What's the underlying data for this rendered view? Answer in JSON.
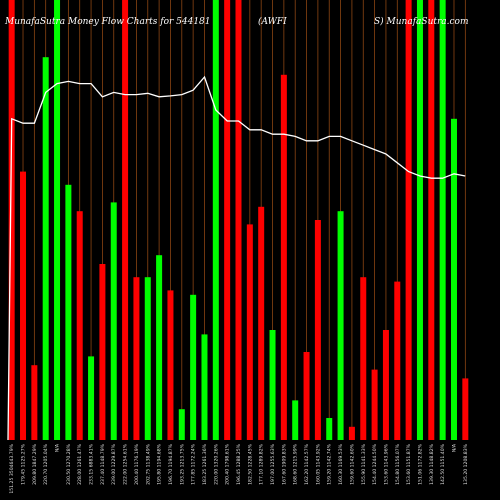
{
  "chart_data": {
    "type": "bar",
    "title_left": "MunafaSutra  Money Flow  Charts for 544181",
    "title_mid": "(AWFI",
    "title_right": "S) MunafaSutra.com",
    "colors": {
      "up": "#00ff00",
      "down": "#ff0000",
      "line": "#ffffff",
      "grid": "#8b4513",
      "background": "#000000"
    },
    "ylim": [
      0,
      100
    ],
    "bars": [
      {
        "label": "151.25 3504643.79%",
        "color": "down",
        "value": 100
      },
      {
        "label": "179.45 1125.27%",
        "color": "down",
        "value": 61
      },
      {
        "label": "209.80 1847.29%",
        "color": "down",
        "value": 17
      },
      {
        "label": "220.70 1205.04%",
        "color": "up",
        "value": 87
      },
      {
        "label": "N/A",
        "color": "up",
        "value": 100
      },
      {
        "label": "230.50 1270.28%",
        "color": "up",
        "value": 58
      },
      {
        "label": "228.00 1261.47%",
        "color": "down",
        "value": 52
      },
      {
        "label": "233.15 6883.41%",
        "color": "up",
        "value": 19
      },
      {
        "label": "237.40 1148.79%",
        "color": "down",
        "value": 40
      },
      {
        "label": "239.00 1229.87%",
        "color": "up",
        "value": 54
      },
      {
        "label": "222.00 1254.61%",
        "color": "down",
        "value": 100
      },
      {
        "label": "200.40 1176.19%",
        "color": "down",
        "value": 37
      },
      {
        "label": "202.75 1138.49%",
        "color": "up",
        "value": 37
      },
      {
        "label": "195.80 1194.68%",
        "color": "up",
        "value": 42
      },
      {
        "label": "196.70 1194.87%",
        "color": "down",
        "value": 34
      },
      {
        "label": "193.25 1213.75%",
        "color": "up",
        "value": 7
      },
      {
        "label": "177.85 1172.24%",
        "color": "up",
        "value": 33
      },
      {
        "label": "183.25 1261.36%",
        "color": "up",
        "value": 24
      },
      {
        "label": "220.00 1320.26%",
        "color": "up",
        "value": 100
      },
      {
        "label": "200.40 1798.61%",
        "color": "down",
        "value": 100
      },
      {
        "label": "196.45 1288.25%",
        "color": "down",
        "value": 100
      },
      {
        "label": "182.50 1228.45%",
        "color": "down",
        "value": 49
      },
      {
        "label": "177.10 1289.82%",
        "color": "down",
        "value": 53
      },
      {
        "label": "197.00 1255.63%",
        "color": "up",
        "value": 25
      },
      {
        "label": "167.60 1909.83%",
        "color": "down",
        "value": 83
      },
      {
        "label": "168.60 1215.99%",
        "color": "up",
        "value": 9
      },
      {
        "label": "162.20 1142.57%",
        "color": "down",
        "value": 20
      },
      {
        "label": "160.05 1143.92%",
        "color": "down",
        "value": 50
      },
      {
        "label": "159.20 1142.74%",
        "color": "up",
        "value": 5
      },
      {
        "label": "160.30 1169.53%",
        "color": "up",
        "value": 52
      },
      {
        "label": "159.60 1142.60%",
        "color": "down",
        "value": 3
      },
      {
        "label": "155.90 1141.33%",
        "color": "down",
        "value": 37
      },
      {
        "label": "154.40 1244.50%",
        "color": "down",
        "value": 16
      },
      {
        "label": "153.60 1143.96%",
        "color": "down",
        "value": 25
      },
      {
        "label": "154.80 1156.07%",
        "color": "down",
        "value": 36
      },
      {
        "label": "153.60 1151.87%",
        "color": "down",
        "value": 100
      },
      {
        "label": "151.06 1172.82%",
        "color": "up",
        "value": 100
      },
      {
        "label": "139.30 1148.82%",
        "color": "down",
        "value": 100
      },
      {
        "label": "142.50 1151.40%",
        "color": "up",
        "value": 100
      },
      {
        "label": "N/A",
        "color": "up",
        "value": 73
      },
      {
        "label": "135.20 1208.83%",
        "color": "down",
        "value": 14
      }
    ],
    "line": [
      73,
      72,
      72,
      79,
      81,
      81.5,
      81,
      81,
      78,
      79,
      78.5,
      78.5,
      78.8,
      78,
      78.2,
      78.5,
      79.5,
      82.5,
      75,
      72.5,
      72.5,
      70.5,
      70.5,
      69.5,
      69.5,
      69,
      68,
      68,
      69,
      69,
      68,
      67,
      66,
      65,
      63,
      61,
      60,
      59.5,
      59.5,
      60.5,
      60
    ]
  }
}
